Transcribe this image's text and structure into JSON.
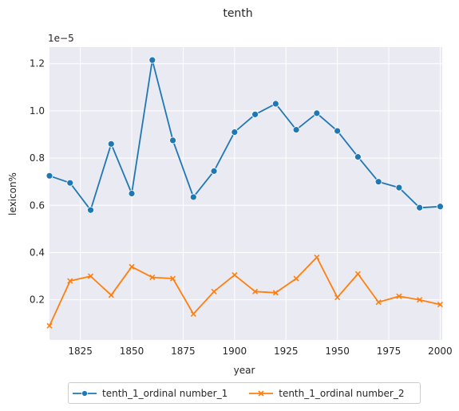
{
  "chart_data": {
    "type": "line",
    "title": "tenth",
    "xlabel": "year",
    "ylabel": "lexicon%",
    "y_offset_label": "1e−5",
    "xlim": [
      1810,
      2001
    ],
    "ylim": [
      3e-07,
      1.27e-05
    ],
    "x_ticks": [
      1825,
      1850,
      1875,
      1900,
      1925,
      1950,
      1975,
      2000
    ],
    "y_ticks": [
      0.2,
      0.4,
      0.6,
      0.8,
      1.0,
      1.2
    ],
    "grid": true,
    "legend_position": "bottom-center",
    "x": [
      1810,
      1820,
      1830,
      1840,
      1850,
      1860,
      1870,
      1880,
      1890,
      1900,
      1910,
      1920,
      1930,
      1940,
      1950,
      1960,
      1970,
      1980,
      1990,
      2000
    ],
    "series": [
      {
        "name": "tenth_1_ordinal number_1",
        "color": "#1f77b4",
        "marker": "circle",
        "values": [
          0.725,
          0.695,
          0.58,
          0.86,
          0.65,
          1.215,
          0.875,
          0.635,
          0.745,
          0.91,
          0.985,
          1.03,
          0.92,
          0.99,
          0.915,
          0.805,
          0.7,
          0.675,
          0.59,
          0.595
        ]
      },
      {
        "name": "tenth_1_ordinal number_2",
        "color": "#ff7f0e",
        "marker": "x",
        "values": [
          0.09,
          0.28,
          0.3,
          0.22,
          0.34,
          0.295,
          0.29,
          0.14,
          0.235,
          0.305,
          0.235,
          0.23,
          0.29,
          0.38,
          0.21,
          0.31,
          0.19,
          0.215,
          0.2,
          0.18
        ]
      }
    ]
  }
}
